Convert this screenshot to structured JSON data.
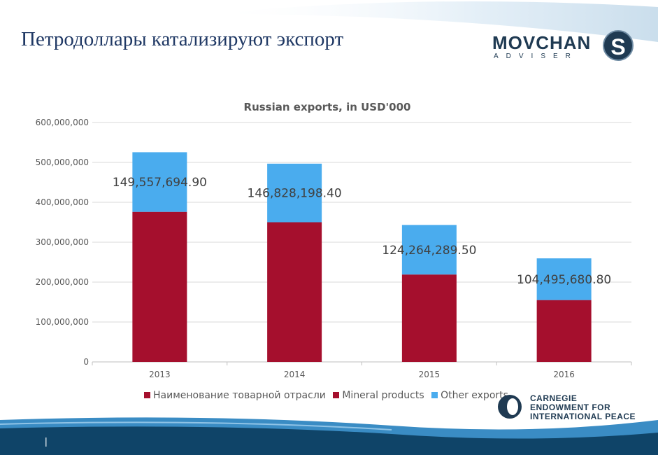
{
  "slide": {
    "title": "Петродоллары катализируют экспорт",
    "page_marker": "|",
    "logo_movchan": {
      "word": "MOVCHAN",
      "sub": "ADVISER",
      "mark": "S"
    },
    "logo_carnegie": {
      "line1": "CARNEGIE",
      "line2": "ENDOWMENT FOR",
      "line3": "INTERNATIONAL PEACE"
    },
    "colors": {
      "navy": "#1f3864",
      "band_dark": "#0f4468",
      "band_light": "#3a8cc4"
    }
  },
  "chart_data": {
    "type": "bar",
    "stacked": true,
    "title": "Russian exports, in USD'000",
    "categories": [
      "2013",
      "2014",
      "2015",
      "2016"
    ],
    "ylim": [
      0,
      600000000
    ],
    "yticks": [
      0,
      100000000,
      200000000,
      300000000,
      400000000,
      500000000,
      600000000
    ],
    "ytick_labels": [
      "0",
      "100,000,000",
      "200,000,000",
      "300,000,000",
      "400,000,000",
      "500,000,000",
      "600,000,000"
    ],
    "grid": true,
    "legend_position": "bottom",
    "series": [
      {
        "name": "Наименование товарной отрасли",
        "color": "#a50f2d",
        "values": [
          0,
          0,
          0,
          0
        ]
      },
      {
        "name": "Mineral products",
        "color": "#a50f2d",
        "values": [
          376000000,
          350000000,
          219000000,
          155000000
        ]
      },
      {
        "name": "Other exports",
        "color": "#4aacee",
        "values": [
          149557694.9,
          146828198.4,
          124264289.5,
          104495680.8
        ]
      }
    ],
    "data_labels": [
      "149,557,694.90",
      "146,828,198.40",
      "124,264,289.50",
      "104,495,680.80"
    ]
  }
}
